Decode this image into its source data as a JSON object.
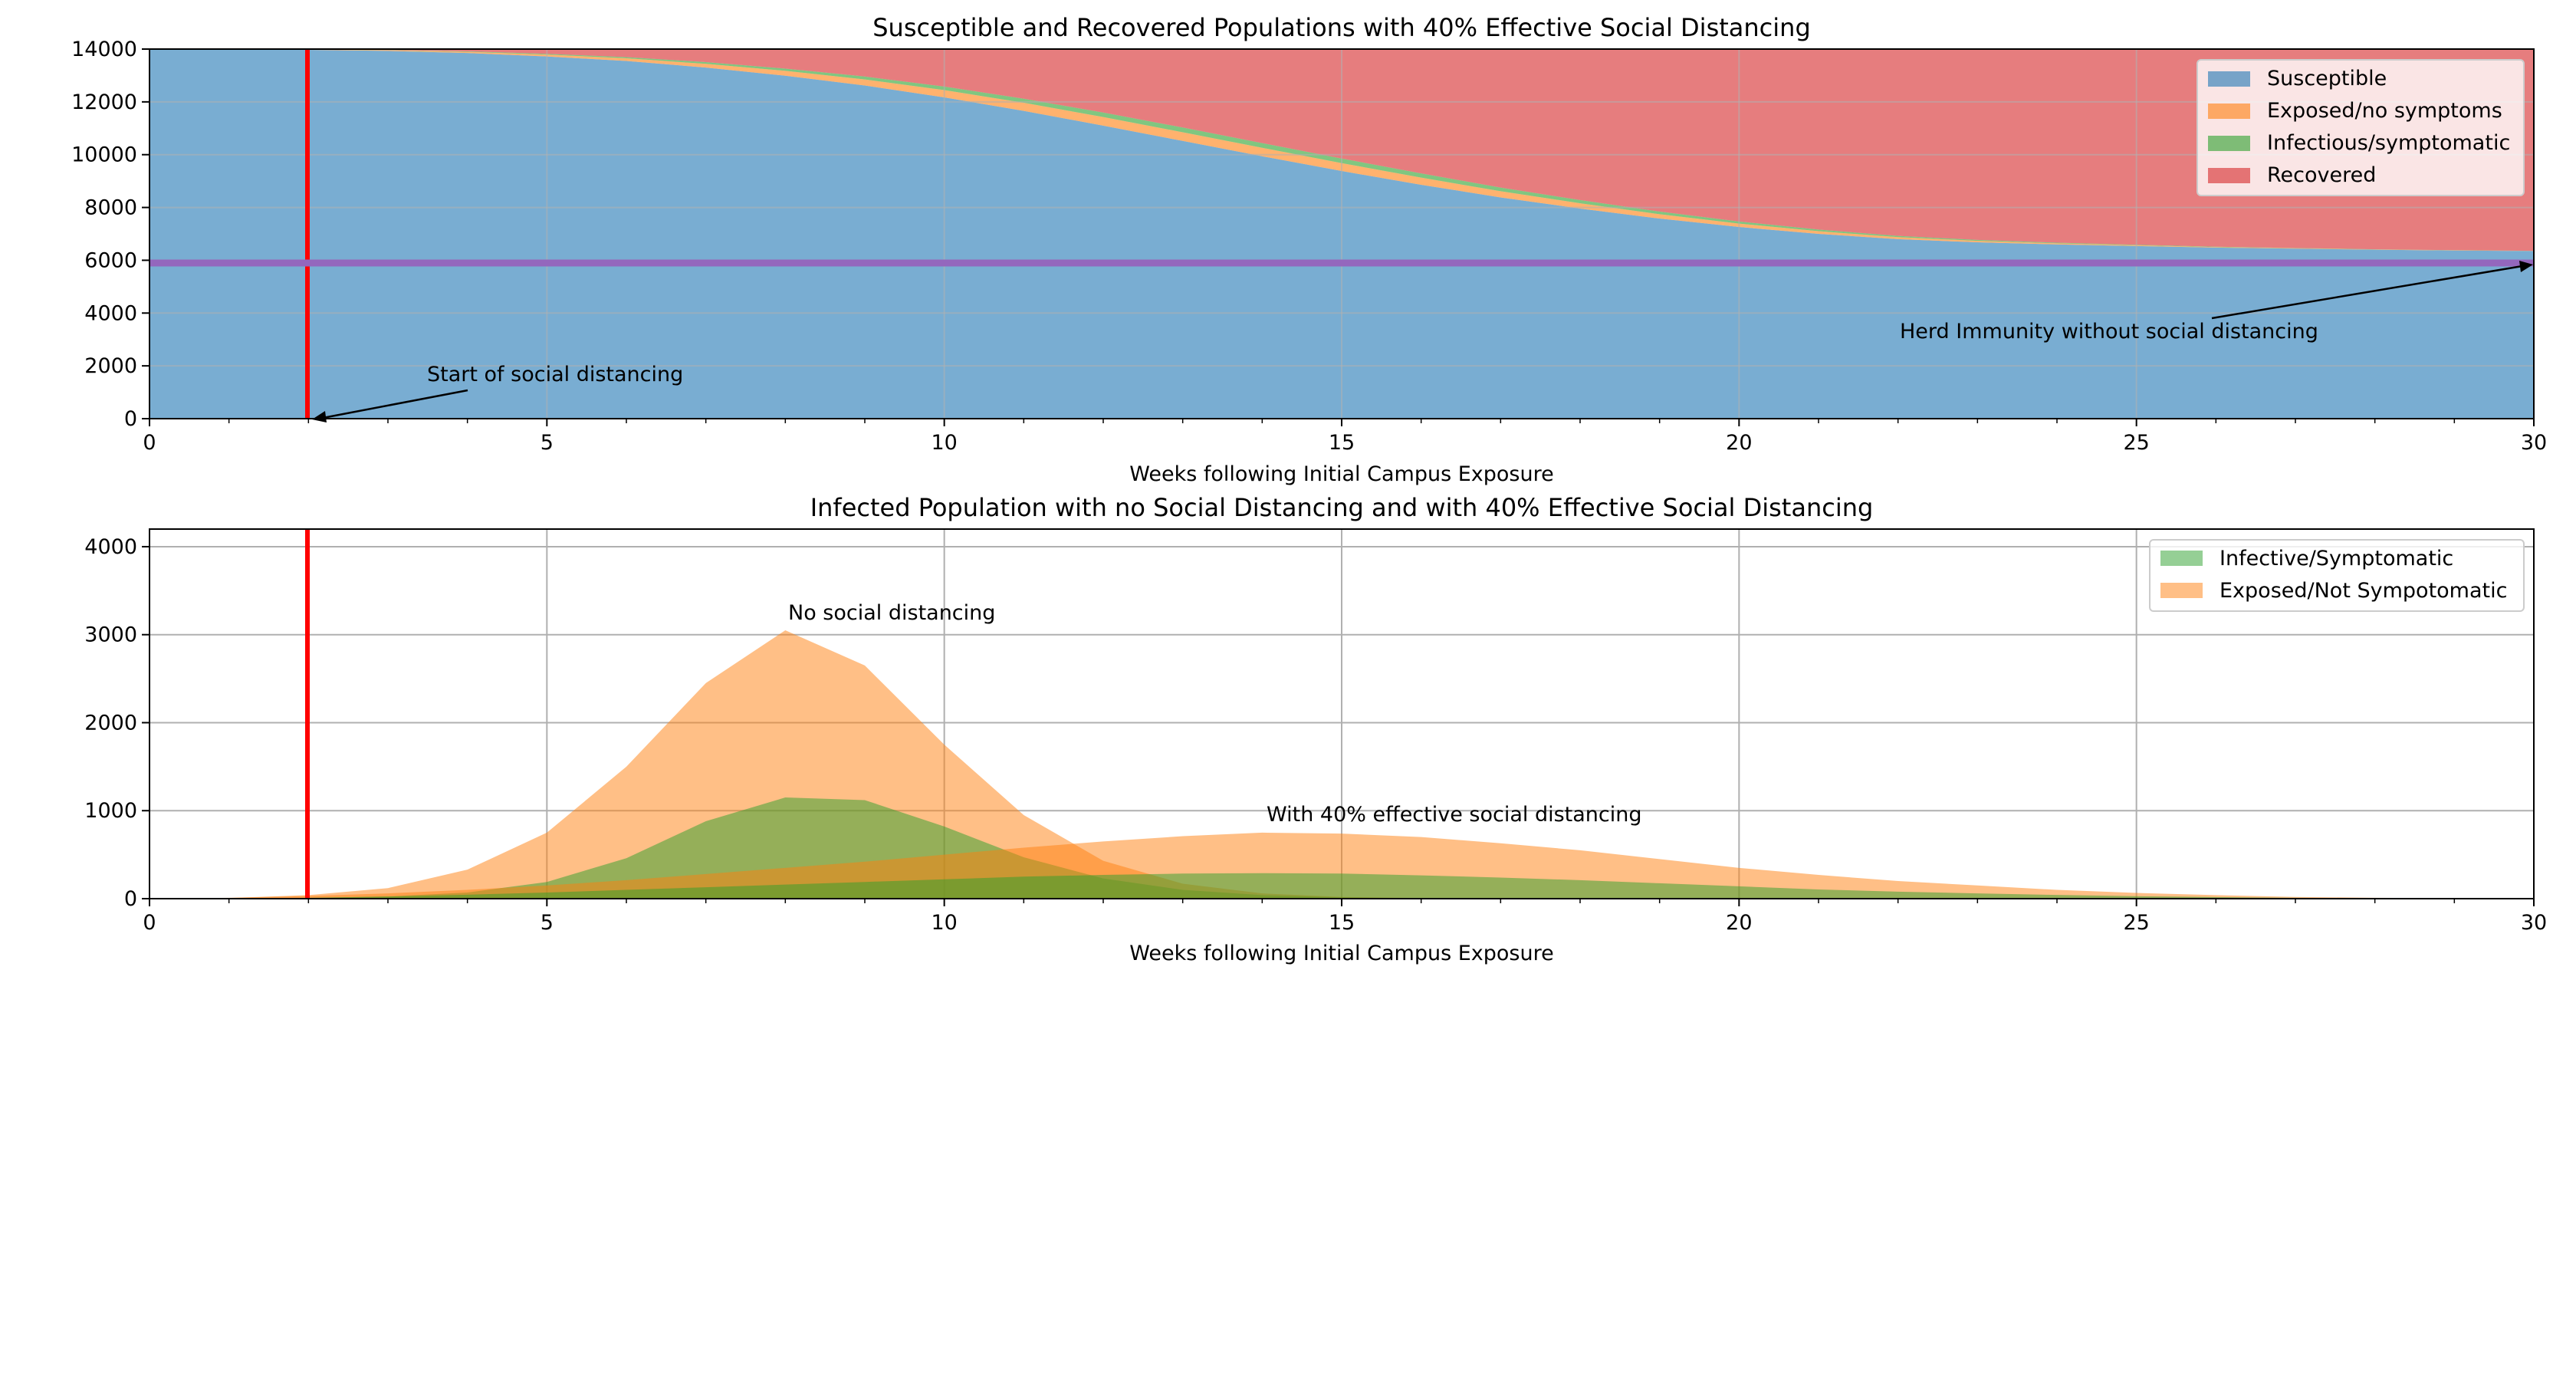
{
  "chart_data": [
    {
      "type": "area",
      "stacked": true,
      "title": "Susceptible and Recovered Populations with  40% Effective Social Distancing",
      "xlabel": "Weeks following Initial Campus Exposure",
      "ylabel": "",
      "xlim": [
        0,
        30
      ],
      "ylim": [
        0,
        14000
      ],
      "xticks": [
        0,
        5,
        10,
        15,
        20,
        25,
        30
      ],
      "yticks": [
        0,
        2000,
        4000,
        6000,
        8000,
        10000,
        12000,
        14000
      ],
      "grid": true,
      "legend_position": "top-right",
      "colors": {
        "susceptible": "#1f77b4",
        "exposed": "#ff7f0e",
        "infectious": "#2ca02c",
        "recovered": "#d62728",
        "distancing_line": "#ff0000",
        "herd_line": "#9467bd"
      },
      "x": [
        0,
        1,
        2,
        3,
        4,
        5,
        6,
        7,
        8,
        9,
        10,
        11,
        12,
        13,
        14,
        15,
        16,
        17,
        18,
        19,
        20,
        21,
        22,
        23,
        24,
        25,
        26,
        27,
        28,
        29,
        30
      ],
      "series": [
        {
          "name": "Susceptible",
          "values": [
            14000,
            13990,
            13970,
            13930,
            13850,
            13720,
            13550,
            13300,
            12990,
            12620,
            12170,
            11660,
            11100,
            10520,
            9940,
            9380,
            8860,
            8380,
            7960,
            7580,
            7260,
            7000,
            6800,
            6680,
            6600,
            6540,
            6480,
            6440,
            6400,
            6370,
            6350
          ]
        },
        {
          "name": "Exposed/no symptoms",
          "values": [
            0,
            5,
            12,
            25,
            45,
            70,
            100,
            140,
            185,
            230,
            275,
            305,
            325,
            330,
            320,
            300,
            270,
            235,
            200,
            165,
            130,
            100,
            75,
            55,
            40,
            28,
            20,
            14,
            10,
            7,
            5
          ]
        },
        {
          "name": "Infectious/symptomatic",
          "values": [
            0,
            2,
            5,
            10,
            18,
            30,
            45,
            65,
            85,
            110,
            135,
            155,
            170,
            180,
            180,
            175,
            160,
            140,
            120,
            100,
            80,
            62,
            47,
            35,
            26,
            19,
            14,
            10,
            7,
            5,
            3
          ]
        },
        {
          "name": "Recovered",
          "values": [
            0,
            3,
            13,
            35,
            87,
            180,
            305,
            495,
            740,
            1040,
            1420,
            1880,
            2405,
            2970,
            3560,
            4145,
            4710,
            5245,
            5720,
            6155,
            6530,
            6838,
            7078,
            7230,
            7334,
            7413,
            7486,
            7536,
            7583,
            7618,
            7642
          ]
        }
      ],
      "legend": [
        "Susceptible",
        "Exposed/no symptoms",
        "Infectious/symptomatic",
        "Recovered"
      ],
      "reference_lines": {
        "social_distancing_x": 2,
        "herd_immunity_y": 5850
      },
      "annotations": [
        {
          "text": "Start of social distancing",
          "point": [
            2,
            0
          ],
          "text_pos": [
            3.5,
            1500
          ]
        },
        {
          "text": "Herd Immunity without social distancing",
          "point": [
            30,
            5850
          ],
          "text_pos": [
            22,
            3000
          ]
        }
      ]
    },
    {
      "type": "area",
      "stacked": false,
      "title": "Infected Population with no Social Distancing and with  40% Effective Social Distancing",
      "xlabel": "Weeks following Initial Campus Exposure",
      "ylabel": "",
      "xlim": [
        0,
        30
      ],
      "ylim": [
        0,
        4200
      ],
      "xticks": [
        0,
        5,
        10,
        15,
        20,
        25,
        30
      ],
      "yticks": [
        0,
        1000,
        2000,
        3000,
        4000
      ],
      "grid": true,
      "legend_position": "top-right",
      "colors": {
        "infective": "#2ca02c",
        "exposed": "#ff7f0e",
        "distancing_line": "#ff0000"
      },
      "x": [
        0,
        1,
        2,
        3,
        4,
        5,
        6,
        7,
        8,
        9,
        10,
        11,
        12,
        13,
        14,
        15,
        16,
        17,
        18,
        19,
        20,
        21,
        22,
        23,
        24,
        25,
        26,
        27,
        28,
        29,
        30
      ],
      "series": [
        {
          "name": "Exposed/Not Sympotomatic",
          "scenario": "No social distancing",
          "values": [
            0,
            8,
            40,
            120,
            330,
            750,
            1500,
            2450,
            3050,
            2650,
            1750,
            950,
            430,
            170,
            60,
            20,
            7,
            2,
            0,
            0,
            0,
            0,
            0,
            0,
            0,
            0,
            0,
            0,
            0,
            0,
            0
          ]
        },
        {
          "name": "Infective/Symptomatic",
          "scenario": "No social distancing",
          "values": [
            0,
            2,
            8,
            25,
            70,
            190,
            460,
            880,
            1150,
            1120,
            820,
            470,
            230,
            100,
            40,
            15,
            5,
            1,
            0,
            0,
            0,
            0,
            0,
            0,
            0,
            0,
            0,
            0,
            0,
            0,
            0
          ]
        },
        {
          "name": "Exposed/Not Sympotomatic",
          "scenario": "With  40% effective social distancing",
          "values": [
            0,
            10,
            30,
            60,
            100,
            150,
            210,
            280,
            350,
            420,
            500,
            580,
            650,
            710,
            750,
            740,
            700,
            630,
            550,
            450,
            350,
            270,
            200,
            150,
            100,
            65,
            40,
            20,
            10,
            5,
            0
          ]
        },
        {
          "name": "Infective/Symptomatic",
          "scenario": "With  40% effective social distancing",
          "values": [
            0,
            3,
            10,
            25,
            45,
            70,
            100,
            130,
            160,
            190,
            220,
            250,
            270,
            285,
            290,
            285,
            265,
            240,
            210,
            175,
            140,
            105,
            80,
            60,
            42,
            28,
            18,
            10,
            5,
            2,
            0
          ]
        }
      ],
      "legend": [
        "Infective/Symptomatic",
        "Exposed/Not Sympotomatic"
      ],
      "reference_lines": {
        "social_distancing_x": 2
      },
      "annotations": [
        {
          "text": "No social distancing",
          "text_pos": [
            8,
            3200
          ]
        },
        {
          "text": "With  40% effective social distancing",
          "text_pos": [
            14,
            900
          ]
        }
      ]
    }
  ]
}
